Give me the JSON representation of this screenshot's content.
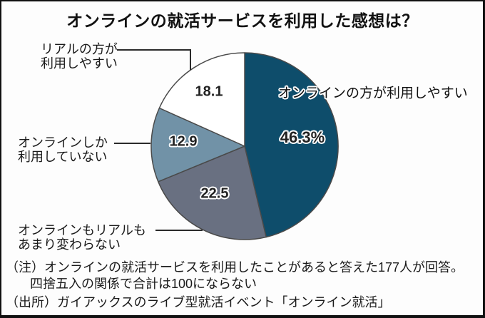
{
  "title": "オンラインの就活サービスを利用した感想は？",
  "chart_data": {
    "type": "pie",
    "title": "オンラインの就活サービスを利用した感想は？",
    "unit": "%",
    "start": "top",
    "direction": "clockwise",
    "slices": [
      {
        "label": "オンラインの方が利用しやすい",
        "value": 46.3,
        "display_value": "46.3%",
        "color": "#0e4d6b",
        "label_lines": [
          "オンラインの方が利用しやすい"
        ]
      },
      {
        "label": "オンラインもリアルもあまり変わらない",
        "value": 22.5,
        "display_value": "22.5",
        "color": "#697081",
        "label_lines": [
          "オンラインもリアルも",
          "あまり変わらない"
        ]
      },
      {
        "label": "オンラインしか利用していない",
        "value": 12.9,
        "display_value": "12.9",
        "color": "#7192a7",
        "label_lines": [
          "オンラインしか",
          "利用していない"
        ]
      },
      {
        "label": "リアルの方が利用しやすい",
        "value": 18.1,
        "display_value": "18.1",
        "color": "#ffffff",
        "label_lines": [
          "リアルの方が",
          "利用しやすい"
        ]
      }
    ]
  },
  "notes": {
    "line1": "（注）オンラインの就活サービスを利用したことがあると答えた177人が回答。",
    "line2": "四捨五入の関係で合計は100にならない",
    "source": "（出所）ガイアックスのライブ型就活イベント「オンライン就活」"
  },
  "style": {
    "slice_border_color": "#4a4a4a",
    "leader_line_color": "#2a2a2a"
  }
}
